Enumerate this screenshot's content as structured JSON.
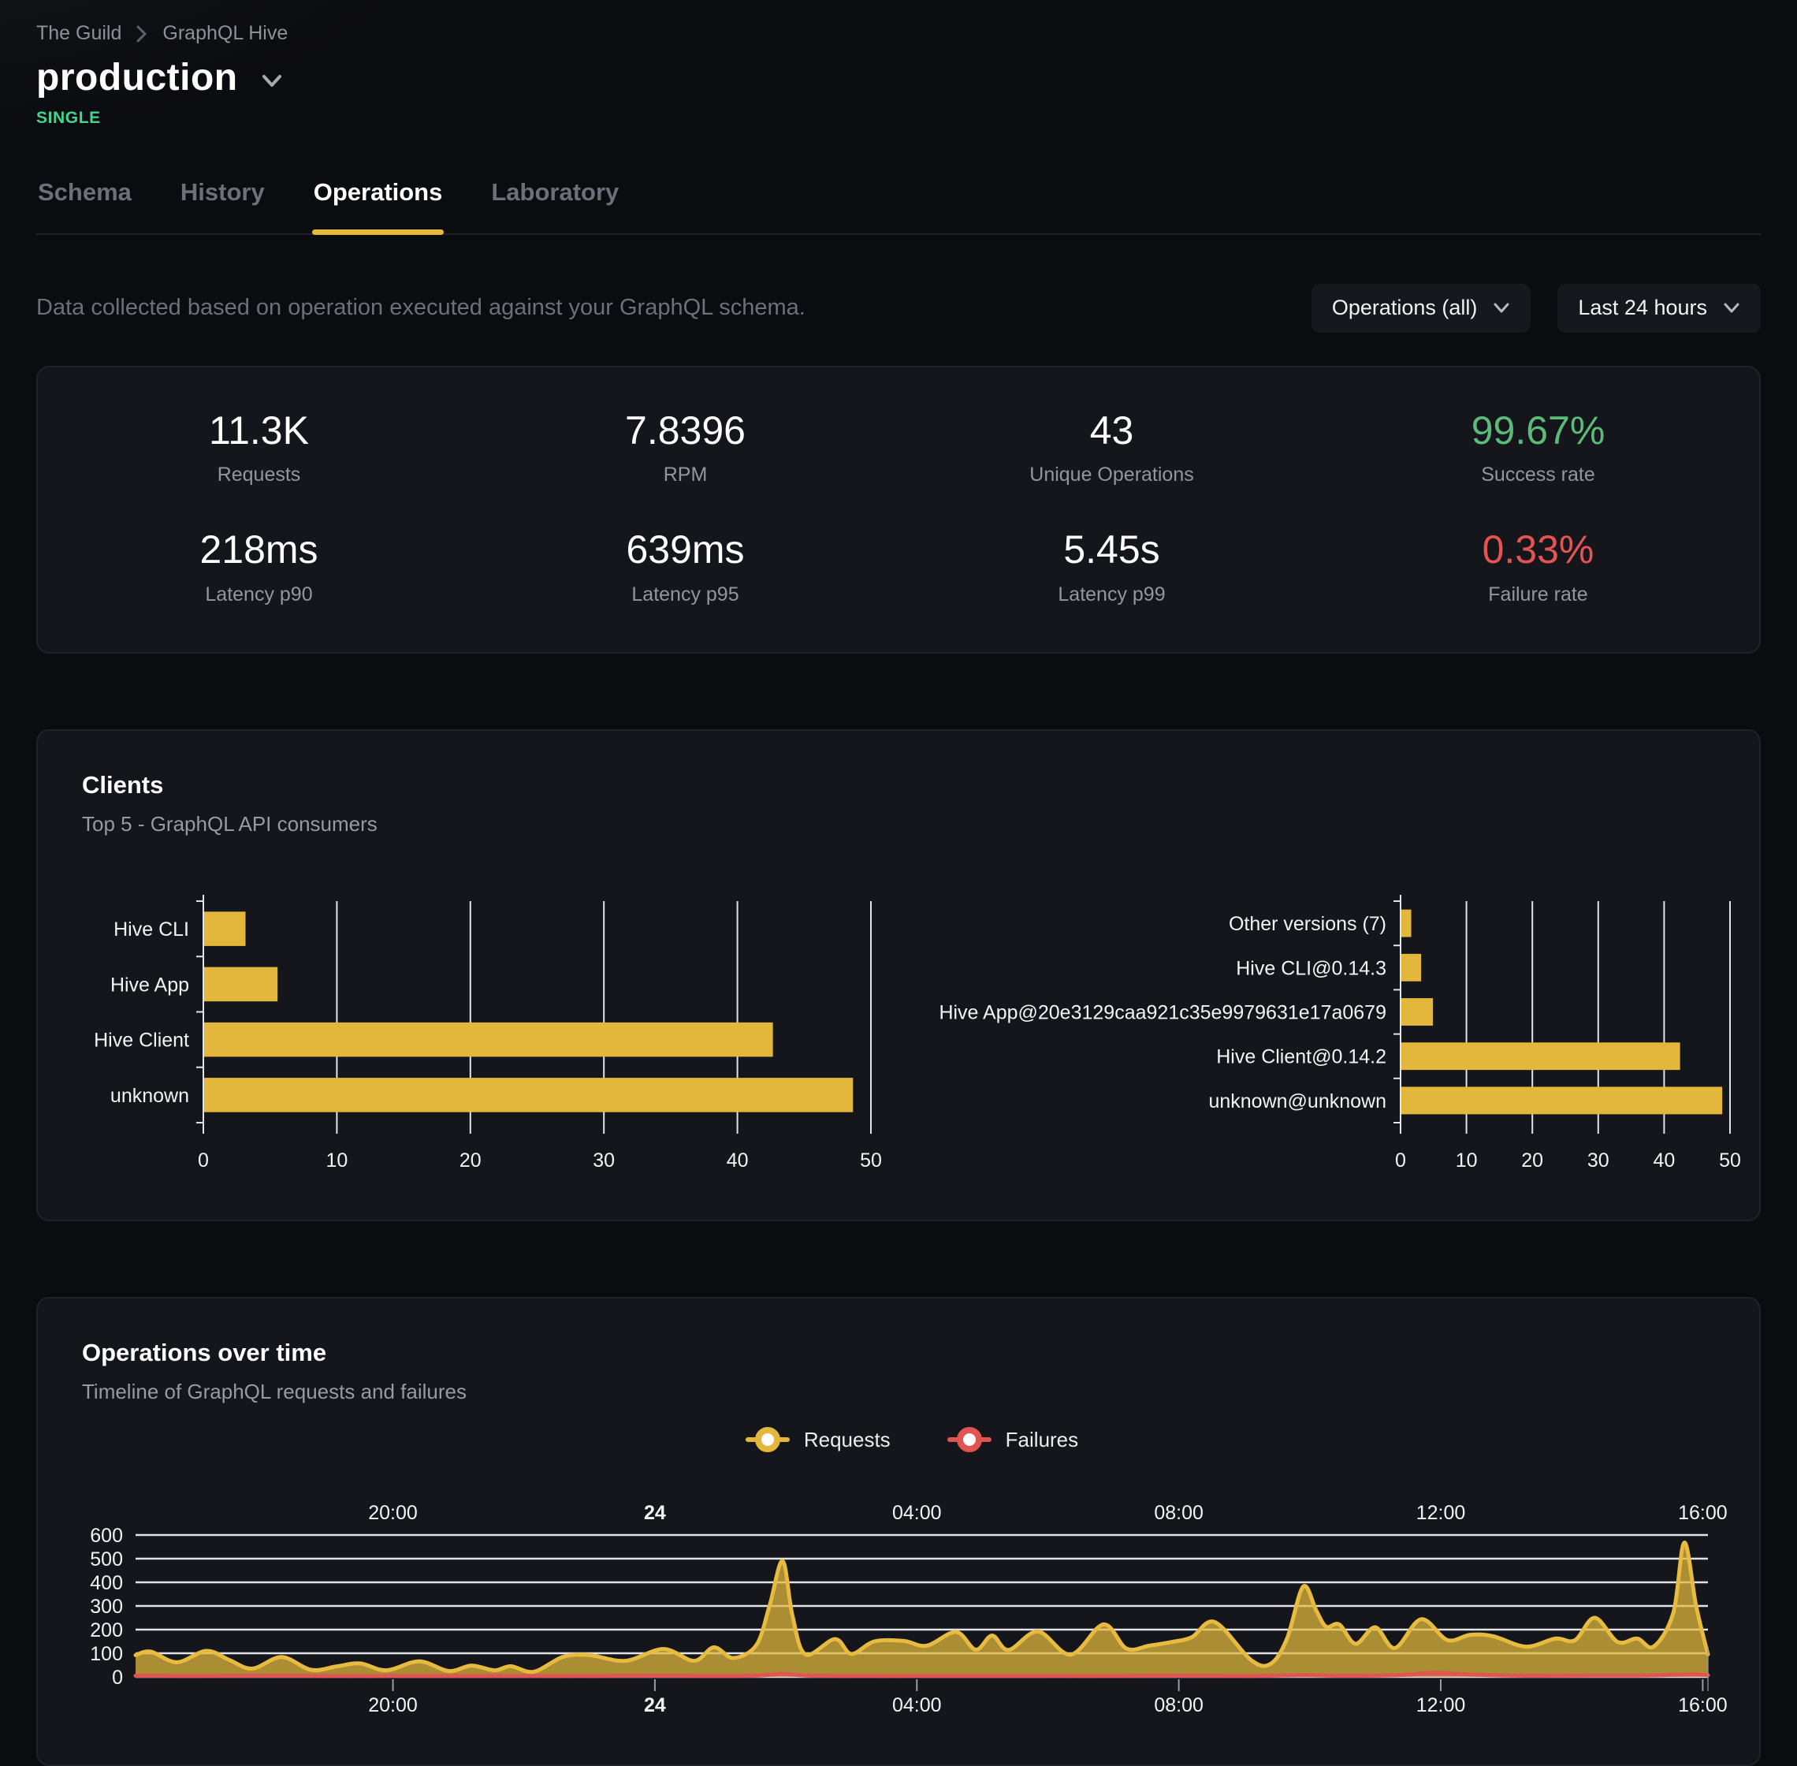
{
  "colors": {
    "accent_yellow": "#e2b73c",
    "line_yellow": "#e6bb3f",
    "failure_red": "#e05551",
    "success_green": "#5bbb7b",
    "stat_red": "#e35452",
    "badge_teal": "#43d492",
    "gridline": "#e2e3e6"
  },
  "breadcrumb": {
    "items": [
      "The Guild",
      "GraphQL Hive"
    ]
  },
  "header": {
    "title": "production",
    "badge": "SINGLE"
  },
  "tabs": [
    {
      "label": "Schema",
      "active": false
    },
    {
      "label": "History",
      "active": false
    },
    {
      "label": "Operations",
      "active": true
    },
    {
      "label": "Laboratory",
      "active": false
    }
  ],
  "controls": {
    "description": "Data collected based on operation executed against your GraphQL schema.",
    "operations_filter": "Operations (all)",
    "time_range": "Last 24 hours"
  },
  "stats": [
    {
      "value": "11.3K",
      "label": "Requests",
      "color": "default"
    },
    {
      "value": "7.8396",
      "label": "RPM",
      "color": "default"
    },
    {
      "value": "43",
      "label": "Unique Operations",
      "color": "default"
    },
    {
      "value": "99.67%",
      "label": "Success rate",
      "color": "green"
    },
    {
      "value": "218ms",
      "label": "Latency p90",
      "color": "default"
    },
    {
      "value": "639ms",
      "label": "Latency p95",
      "color": "default"
    },
    {
      "value": "5.45s",
      "label": "Latency p99",
      "color": "default"
    },
    {
      "value": "0.33%",
      "label": "Failure rate",
      "color": "red"
    }
  ],
  "clients_card": {
    "title": "Clients",
    "subtitle": "Top 5 - GraphQL API consumers"
  },
  "operations_card": {
    "title": "Operations over time",
    "subtitle": "Timeline of GraphQL requests and failures",
    "legend": [
      {
        "label": "Requests",
        "color": "#e2b73c"
      },
      {
        "label": "Failures",
        "color": "#e05551"
      }
    ]
  },
  "chart_data": [
    {
      "id": "clients-by-name",
      "type": "bar",
      "orientation": "horizontal",
      "categories": [
        "Hive CLI",
        "Hive App",
        "Hive Client",
        "unknown"
      ],
      "values": [
        3.1,
        5.5,
        42.6,
        48.6
      ],
      "xlim": [
        0,
        50
      ],
      "xticks": [
        0,
        10,
        20,
        30,
        40,
        50
      ],
      "bar_color": "#e2b73c",
      "grid": true
    },
    {
      "id": "clients-by-version",
      "type": "bar",
      "orientation": "horizontal",
      "categories": [
        "Other versions (7)",
        "Hive CLI@0.14.3",
        "Hive App@20e3129caa921c35e9979631e17a0679",
        "Hive Client@0.14.2",
        "unknown@unknown"
      ],
      "values": [
        1.5,
        3.0,
        4.8,
        42.3,
        48.7
      ],
      "xlim": [
        0,
        50
      ],
      "xticks": [
        0,
        10,
        20,
        30,
        40,
        50
      ],
      "bar_color": "#e2b73c",
      "grid": true
    },
    {
      "id": "operations-over-time",
      "type": "area",
      "title": "Operations over time",
      "t_range": [
        16.07,
        40.08
      ],
      "ylim": [
        0,
        600
      ],
      "yticks": [
        0,
        100,
        200,
        300,
        400,
        500,
        600
      ],
      "xticks": [
        {
          "t": 20,
          "label": "20:00",
          "bold": false
        },
        {
          "t": 24,
          "label": "24",
          "bold": true
        },
        {
          "t": 28,
          "label": "04:00",
          "bold": false
        },
        {
          "t": 32,
          "label": "08:00",
          "bold": false
        },
        {
          "t": 36,
          "label": "12:00",
          "bold": false
        },
        {
          "t": 40,
          "label": "16:00",
          "bold": false
        }
      ],
      "series": [
        {
          "name": "Requests",
          "color": "#e6bb3f",
          "fill_opacity": 0.72,
          "points": [
            [
              16.07,
              92
            ],
            [
              16.3,
              107
            ],
            [
              16.7,
              62
            ],
            [
              17.15,
              110
            ],
            [
              17.5,
              72
            ],
            [
              17.85,
              35
            ],
            [
              18.3,
              84
            ],
            [
              18.75,
              30
            ],
            [
              19.15,
              45
            ],
            [
              19.5,
              57
            ],
            [
              19.9,
              28
            ],
            [
              20.4,
              66
            ],
            [
              20.85,
              25
            ],
            [
              21.2,
              48
            ],
            [
              21.55,
              28
            ],
            [
              21.8,
              45
            ],
            [
              22.15,
              22
            ],
            [
              22.6,
              85
            ],
            [
              23.0,
              92
            ],
            [
              23.55,
              68
            ],
            [
              24.13,
              118
            ],
            [
              24.6,
              68
            ],
            [
              24.9,
              125
            ],
            [
              25.2,
              80
            ],
            [
              25.55,
              135
            ],
            [
              25.75,
              300
            ],
            [
              25.95,
              490
            ],
            [
              26.1,
              260
            ],
            [
              26.3,
              95
            ],
            [
              26.75,
              160
            ],
            [
              27.0,
              97
            ],
            [
              27.35,
              150
            ],
            [
              27.8,
              152
            ],
            [
              28.15,
              132
            ],
            [
              28.6,
              190
            ],
            [
              28.9,
              115
            ],
            [
              29.15,
              175
            ],
            [
              29.4,
              114
            ],
            [
              29.85,
              192
            ],
            [
              30.35,
              94
            ],
            [
              30.85,
              222
            ],
            [
              31.2,
              120
            ],
            [
              31.55,
              132
            ],
            [
              31.9,
              148
            ],
            [
              32.2,
              168
            ],
            [
              32.55,
              232
            ],
            [
              33.1,
              72
            ],
            [
              33.4,
              55
            ],
            [
              33.65,
              160
            ],
            [
              33.9,
              382
            ],
            [
              34.1,
              280
            ],
            [
              34.25,
              212
            ],
            [
              34.45,
              222
            ],
            [
              34.7,
              140
            ],
            [
              35.0,
              210
            ],
            [
              35.3,
              122
            ],
            [
              35.7,
              244
            ],
            [
              36.1,
              156
            ],
            [
              36.45,
              178
            ],
            [
              36.8,
              172
            ],
            [
              37.3,
              128
            ],
            [
              37.75,
              162
            ],
            [
              38.05,
              155
            ],
            [
              38.35,
              250
            ],
            [
              38.7,
              148
            ],
            [
              39.0,
              162
            ],
            [
              39.25,
              128
            ],
            [
              39.55,
              270
            ],
            [
              39.72,
              568
            ],
            [
              39.9,
              300
            ],
            [
              40.08,
              95
            ]
          ]
        },
        {
          "name": "Failures",
          "color": "#e05551",
          "fill_opacity": 0.55,
          "points": [
            [
              16.07,
              5
            ],
            [
              17,
              4
            ],
            [
              18,
              5
            ],
            [
              19,
              4
            ],
            [
              20,
              4
            ],
            [
              21,
              4
            ],
            [
              22,
              4
            ],
            [
              23,
              4
            ],
            [
              24,
              5
            ],
            [
              25,
              4
            ],
            [
              25.6,
              6
            ],
            [
              25.95,
              13
            ],
            [
              26.3,
              6
            ],
            [
              27,
              4
            ],
            [
              28,
              4
            ],
            [
              29,
              4
            ],
            [
              30,
              4
            ],
            [
              31,
              4
            ],
            [
              32,
              5
            ],
            [
              33,
              4
            ],
            [
              33.9,
              7
            ],
            [
              34.5,
              5
            ],
            [
              35.3,
              7
            ],
            [
              35.9,
              17
            ],
            [
              36.3,
              12
            ],
            [
              36.8,
              7
            ],
            [
              37.5,
              5
            ],
            [
              38.3,
              6
            ],
            [
              39,
              6
            ],
            [
              39.6,
              9
            ],
            [
              39.9,
              11
            ],
            [
              40.08,
              7
            ]
          ]
        }
      ],
      "legend_position": "top-center",
      "grid": true
    }
  ]
}
